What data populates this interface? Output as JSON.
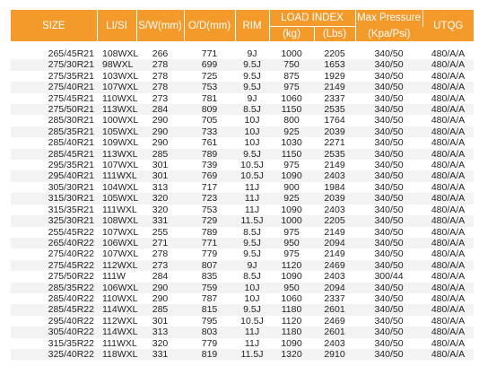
{
  "header": {
    "size": "SIZE",
    "lisi": "LI/SI",
    "sw": "S/W(mm)",
    "od": "O/D(mm)",
    "rim": "RIM",
    "load_index": "LOAD INDEX",
    "kg": "(kg)",
    "lbs": "(Lbs)",
    "max_pressure": "Max Pressure",
    "kpa_psi": "(Kpa/Psi)",
    "utqg": "UTQG"
  },
  "rows": [
    [
      "265/45R21",
      "108WXL",
      "266",
      "771",
      "9J",
      "1000",
      "2205",
      "340/50",
      "480/A/A"
    ],
    [
      "275/30R21",
      "98WXL",
      "278",
      "699",
      "9.5J",
      "750",
      "1653",
      "340/50",
      "480/A/A"
    ],
    [
      "275/35R21",
      "103WXL",
      "278",
      "725",
      "9.5J",
      "875",
      "1929",
      "340/50",
      "480/A/A"
    ],
    [
      "275/40R21",
      "107WXL",
      "278",
      "753",
      "9.5J",
      "975",
      "2149",
      "340/50",
      "480/A/A"
    ],
    [
      "275/45R21",
      "110WXL",
      "273",
      "781",
      "9J",
      "1060",
      "2337",
      "340/50",
      "480/A/A"
    ],
    [
      "275/50R21",
      "113WXL",
      "284",
      "809",
      "8.5J",
      "1150",
      "2535",
      "340/50",
      "480/A/A"
    ],
    [
      "285/30R21",
      "100WXL",
      "290",
      "705",
      "10J",
      "800",
      "1764",
      "340/50",
      "480/A/A"
    ],
    [
      "285/35R21",
      "105WXL",
      "290",
      "733",
      "10J",
      "925",
      "2039",
      "340/50",
      "480/A/A"
    ],
    [
      "285/40R21",
      "109WXL",
      "290",
      "761",
      "10J",
      "1030",
      "2271",
      "340/50",
      "480/A/A"
    ],
    [
      "285/45R21",
      "113WXL",
      "285",
      "789",
      "9.5J",
      "1150",
      "2535",
      "340/50",
      "480/A/A"
    ],
    [
      "295/35R21",
      "107WXL",
      "301",
      "739",
      "10.5J",
      "975",
      "2149",
      "340/50",
      "480/A/A"
    ],
    [
      "295/40R21",
      "111WXL",
      "301",
      "769",
      "10.5J",
      "1090",
      "2403",
      "340/50",
      "480/A/A"
    ],
    [
      "305/30R21",
      "104WXL",
      "313",
      "717",
      "11J",
      "900",
      "1984",
      "340/50",
      "480/A/A"
    ],
    [
      "315/30R21",
      "105WXL",
      "320",
      "723",
      "11J",
      "925",
      "2039",
      "340/50",
      "480/A/A"
    ],
    [
      "315/35R21",
      "111WXL",
      "320",
      "753",
      "11J",
      "1090",
      "2403",
      "340/50",
      "480/A/A"
    ],
    [
      "325/30R21",
      "108WXL",
      "331",
      "729",
      "11.5J",
      "1000",
      "2205",
      "340/50",
      "480/A/A"
    ],
    [
      "255/45R22",
      "107WXL",
      "255",
      "789",
      "8.5J",
      "975",
      "2149",
      "340/50",
      "480/A/A"
    ],
    [
      "265/40R22",
      "106WXL",
      "271",
      "771",
      "9.5J",
      "950",
      "2094",
      "340/50",
      "480/A/A"
    ],
    [
      "275/40R22",
      "107WXL",
      "278",
      "779",
      "9.5J",
      "975",
      "2149",
      "340/50",
      "480/A/A"
    ],
    [
      "275/45R22",
      "112WXL",
      "273",
      "807",
      "9J",
      "1120",
      "2469",
      "340/50",
      "480/A/A"
    ],
    [
      "275/50R22",
      "111W",
      "284",
      "835",
      "8.5J",
      "1090",
      "2403",
      "300/44",
      "480/A/A"
    ],
    [
      "285/35R22",
      "106WXL",
      "290",
      "759",
      "10J",
      "950",
      "2094",
      "340/50",
      "480/A/A"
    ],
    [
      "285/40R22",
      "110WXL",
      "290",
      "787",
      "10J",
      "1060",
      "2337",
      "340/50",
      "480/A/A"
    ],
    [
      "285/45R22",
      "114WXL",
      "285",
      "815",
      "9.5J",
      "1180",
      "2601",
      "340/50",
      "480/A/A"
    ],
    [
      "295/40R22",
      "112WXL",
      "301",
      "795",
      "10.5J",
      "1120",
      "2469",
      "340/50",
      "480/A/A"
    ],
    [
      "305/40R22",
      "114WXL",
      "313",
      "803",
      "11J",
      "1180",
      "2601",
      "340/50",
      "480/A/A"
    ],
    [
      "315/35R22",
      "111WXL",
      "320",
      "779",
      "11J",
      "1090",
      "2403",
      "340/50",
      "480/A/A"
    ],
    [
      "325/40R22",
      "118WXL",
      "331",
      "819",
      "11.5J",
      "1320",
      "2910",
      "340/50",
      "480/A/A"
    ]
  ]
}
